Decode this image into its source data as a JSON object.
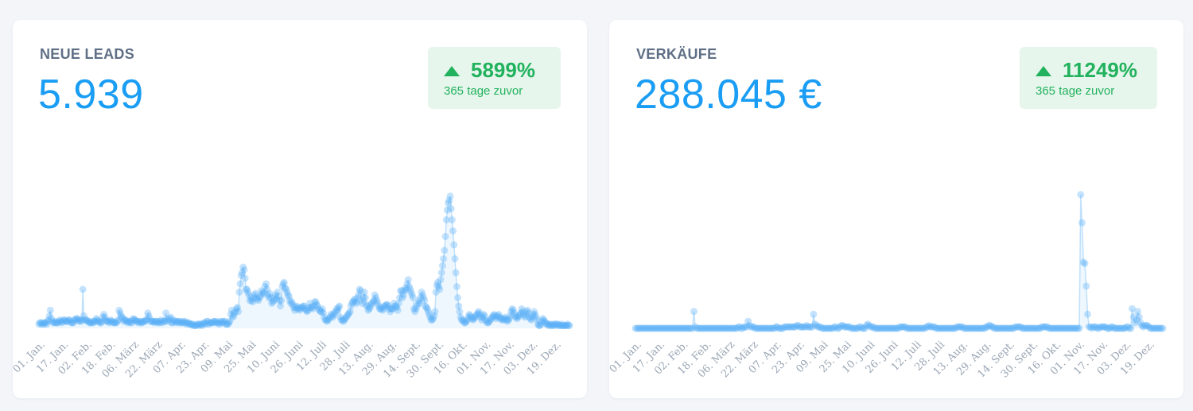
{
  "cards": [
    {
      "title": "NEUE LEADS",
      "value": "5.939",
      "badge": {
        "percent": "5899%",
        "caption": "365 tage zuvor",
        "color": "#22b25e",
        "direction": "up"
      }
    },
    {
      "title": "VERKÄUFE",
      "value": "288.045 €",
      "badge": {
        "percent": "11249%",
        "caption": "365 tage zuvor",
        "color": "#22b25e",
        "direction": "up"
      }
    }
  ],
  "chart_data": [
    {
      "type": "scatter",
      "title": "NEUE LEADS",
      "x_tick_labels": [
        "01. Jan.",
        "17. Jan.",
        "02. Feb.",
        "18. Feb.",
        "06. März",
        "22. März",
        "07. Apr.",
        "23. Apr.",
        "09. Mai",
        "25. Mai",
        "10. Juni",
        "26. Juni",
        "12. Juli",
        "28. Juli",
        "13. Aug.",
        "29. Aug.",
        "14. Sept.",
        "30. Sept.",
        "16. Okt.",
        "01. Nov.",
        "17. Nov.",
        "03. Dez.",
        "19. Dez."
      ],
      "x_range": [
        0,
        365
      ],
      "ylim": [
        0,
        100
      ],
      "color": "#5aaef5",
      "grid": false,
      "series": [
        {
          "values": [
            3,
            4,
            4,
            3,
            4,
            3,
            4,
            4,
            3,
            5,
            6,
            9,
            13,
            7,
            5,
            4,
            4,
            5,
            4,
            4,
            4,
            5,
            6,
            5,
            4,
            5,
            6,
            6,
            5,
            5,
            5,
            6,
            6,
            5,
            4,
            4,
            4,
            6,
            6,
            7,
            7,
            6,
            5,
            6,
            5,
            6,
            28,
            9,
            6,
            6,
            6,
            5,
            5,
            4,
            4,
            4,
            5,
            4,
            5,
            5,
            7,
            6,
            5,
            5,
            4,
            4,
            5,
            8,
            10,
            8,
            6,
            5,
            5,
            5,
            4,
            6,
            5,
            5,
            4,
            4,
            4,
            4,
            5,
            6,
            13,
            11,
            9,
            8,
            7,
            5,
            6,
            6,
            5,
            4,
            5,
            5,
            4,
            4,
            6,
            7,
            6,
            6,
            5,
            5,
            4,
            5,
            5,
            4,
            4,
            5,
            5,
            5,
            6,
            6,
            11,
            9,
            7,
            5,
            5,
            5,
            5,
            4,
            5,
            5,
            5,
            4,
            4,
            5,
            6,
            4,
            5,
            5,
            5,
            11,
            7,
            5,
            6,
            7,
            8,
            4,
            4,
            6,
            5,
            5,
            4,
            5,
            5,
            4,
            5,
            4,
            4,
            5,
            4,
            5,
            4,
            3,
            4,
            4,
            3,
            3,
            3,
            2,
            3,
            2,
            2,
            2,
            3,
            3,
            2,
            3,
            3,
            2,
            3,
            4,
            4,
            3,
            5,
            5,
            3,
            4,
            4,
            4,
            4,
            5,
            5,
            4,
            5,
            4,
            4,
            3,
            5,
            4,
            5,
            4,
            5,
            5,
            3,
            3,
            3,
            4,
            5,
            10,
            13,
            8,
            9,
            11,
            12,
            14,
            15,
            12,
            26,
            32,
            38,
            40,
            44,
            42,
            36,
            28,
            28,
            26,
            24,
            20,
            22,
            20,
            19,
            22,
            24,
            25,
            22,
            21,
            20,
            22,
            23,
            27,
            25,
            26,
            25,
            30,
            32,
            28,
            24,
            22,
            25,
            22,
            18,
            19,
            20,
            22,
            24,
            21,
            26,
            23,
            20,
            16,
            20,
            30,
            32,
            33,
            29,
            28,
            26,
            24,
            23,
            20,
            18,
            19,
            17,
            15,
            13,
            15,
            16,
            14,
            15,
            13,
            14,
            15,
            15,
            16,
            16,
            14,
            13,
            12,
            13,
            15,
            18,
            15,
            15,
            14,
            16,
            19,
            19,
            17,
            16,
            14,
            13,
            12,
            12,
            14,
            11,
            8,
            6,
            6,
            5,
            6,
            7,
            8,
            10,
            9,
            8,
            11,
            10,
            12,
            14,
            13,
            15,
            16,
            8,
            6,
            6,
            5,
            6,
            7,
            8,
            9,
            10,
            11,
            12,
            16,
            18,
            19,
            20,
            21,
            19,
            18,
            22,
            24,
            28,
            27,
            20,
            18,
            22,
            26,
            22,
            17,
            16,
            13,
            14,
            15,
            17,
            18,
            19,
            20,
            24,
            22,
            20,
            18,
            16,
            14,
            14,
            15,
            13,
            14,
            16,
            16,
            17,
            17,
            16,
            14,
            12,
            14,
            14,
            14,
            18,
            16,
            16,
            15,
            13,
            18,
            22,
            27,
            27,
            22,
            24,
            27,
            29,
            28,
            32,
            35,
            30,
            28,
            26,
            24,
            22,
            14,
            12,
            14,
            16,
            18,
            20,
            18,
            22,
            26,
            24,
            22,
            20,
            16,
            15,
            14,
            12,
            10,
            8,
            6,
            6,
            7,
            9,
            12,
            26,
            31,
            33,
            30,
            28,
            35,
            40,
            45,
            50,
            56,
            66,
            78,
            85,
            90,
            92,
            95,
            86,
            78,
            70,
            60,
            50,
            40,
            30,
            22,
            16,
            12,
            8,
            6,
            6,
            5,
            4,
            4,
            5,
            6,
            8,
            10,
            9,
            8,
            7,
            6,
            7,
            8,
            9,
            10,
            11,
            12,
            10,
            8,
            6,
            8,
            10,
            9,
            6,
            5,
            4,
            4,
            5,
            6,
            7,
            8,
            9,
            10,
            9,
            7,
            8,
            9,
            10,
            8,
            7,
            6,
            7,
            6,
            7,
            8,
            6,
            5,
            6,
            7,
            9,
            12,
            14,
            13,
            11,
            9,
            8,
            7,
            8,
            9,
            10,
            11,
            14,
            12,
            10,
            8,
            9,
            12,
            13,
            11,
            8,
            7,
            6,
            8,
            10,
            12,
            10,
            8,
            6,
            3,
            2,
            2,
            3,
            5,
            7,
            6,
            5,
            4,
            3,
            3,
            2,
            3,
            2,
            3,
            2,
            2,
            3,
            3,
            2,
            3,
            3,
            2,
            2,
            2,
            3,
            2,
            2,
            2,
            2,
            2,
            3,
            2,
            2
          ],
          "x": "day index 0–364 (one point per day)"
        }
      ]
    },
    {
      "type": "scatter",
      "title": "VERKÄUFE",
      "x_tick_labels": [
        "01. Jan.",
        "17. Jan.",
        "02. Feb.",
        "18. Feb.",
        "06. März",
        "22. März",
        "07. Apr.",
        "23. Apr.",
        "09. Mai",
        "25. Mai",
        "10. Juni",
        "26. Juni",
        "12. Juli",
        "28. Juli",
        "13. Aug.",
        "29. Aug.",
        "14. Sept.",
        "30. Sept.",
        "16. Okt.",
        "01. Nov.",
        "17. Nov.",
        "03. Dez.",
        "19. Dez."
      ],
      "x_range": [
        0,
        365
      ],
      "ylim": [
        0,
        100
      ],
      "color": "#5aaef5",
      "grid": false,
      "series": [
        {
          "values": [
            0,
            0,
            0,
            0,
            0,
            0,
            0,
            0,
            0,
            0,
            0,
            0,
            0,
            0,
            0,
            0,
            0,
            0,
            0,
            0,
            0,
            0,
            0,
            0,
            0,
            0,
            0,
            0,
            0,
            0,
            0,
            0,
            0,
            0,
            0,
            0,
            0,
            0,
            0,
            0,
            0,
            0,
            12,
            1,
            0,
            0,
            0,
            0,
            0,
            0,
            0,
            0,
            0,
            0,
            0,
            0,
            0,
            0,
            0,
            0,
            0,
            0,
            0,
            0,
            0,
            0,
            0,
            0,
            0,
            0,
            0,
            0,
            0,
            0,
            1,
            1,
            0,
            0,
            1,
            1,
            1,
            5,
            2,
            1,
            1,
            1,
            0,
            0,
            0,
            0,
            0,
            0,
            0,
            0,
            0,
            0,
            0,
            0,
            0,
            0,
            0,
            1,
            1,
            0,
            0,
            0,
            0,
            1,
            1,
            1,
            1,
            1,
            1,
            1,
            1,
            1,
            2,
            2,
            1,
            1,
            1,
            1,
            1,
            2,
            1,
            1,
            1,
            1,
            10,
            3,
            2,
            1,
            1,
            1,
            0,
            0,
            0,
            0,
            0,
            0,
            0,
            0,
            0,
            1,
            1,
            0,
            0,
            1,
            2,
            2,
            1,
            1,
            1,
            1,
            1,
            0,
            0,
            0,
            0,
            0,
            0,
            1,
            1,
            0,
            0,
            0,
            2,
            3,
            2,
            1,
            1,
            1,
            0,
            0,
            0,
            0,
            0,
            0,
            0,
            0,
            0,
            0,
            0,
            0,
            0,
            0,
            0,
            0,
            0,
            0,
            1,
            1,
            1,
            1,
            1,
            0,
            0,
            0,
            0,
            0,
            0,
            0,
            0,
            0,
            0,
            0,
            0,
            0,
            0,
            1,
            1,
            2,
            1,
            1,
            1,
            1,
            0,
            0,
            0,
            0,
            0,
            0,
            0,
            0,
            0,
            0,
            0,
            0,
            0,
            0,
            0,
            1,
            1,
            1,
            1,
            1,
            0,
            0,
            0,
            0,
            0,
            0,
            0,
            0,
            0,
            0,
            0,
            0,
            0,
            0,
            0,
            0,
            1,
            1,
            2,
            2,
            1,
            1,
            0,
            0,
            0,
            0,
            0,
            0,
            0,
            0,
            0,
            0,
            0,
            0,
            0,
            0,
            0,
            1,
            1,
            1,
            1,
            1,
            0,
            0,
            0,
            0,
            0,
            0,
            0,
            0,
            0,
            0,
            0,
            0,
            0,
            0,
            1,
            1,
            1,
            1,
            1,
            0,
            0,
            0,
            0,
            0,
            0,
            0,
            0,
            0,
            0,
            0,
            0,
            0,
            0,
            0,
            0,
            0,
            0,
            0,
            0,
            0,
            0,
            0,
            95,
            75,
            47,
            46,
            30,
            10,
            1,
            1,
            0,
            1,
            1,
            1,
            0,
            0,
            1,
            1,
            1,
            1,
            1,
            0,
            0,
            0,
            1,
            1,
            0,
            0,
            0,
            0,
            0,
            0,
            0,
            0,
            0,
            1,
            1,
            0,
            0,
            14,
            8,
            4,
            6,
            12,
            8,
            4,
            2,
            1,
            2,
            2,
            2,
            1,
            0,
            0,
            0,
            0,
            0,
            0,
            0,
            0,
            0,
            0
          ],
          "x": "day index 0–364 (one point per day)"
        }
      ]
    }
  ]
}
